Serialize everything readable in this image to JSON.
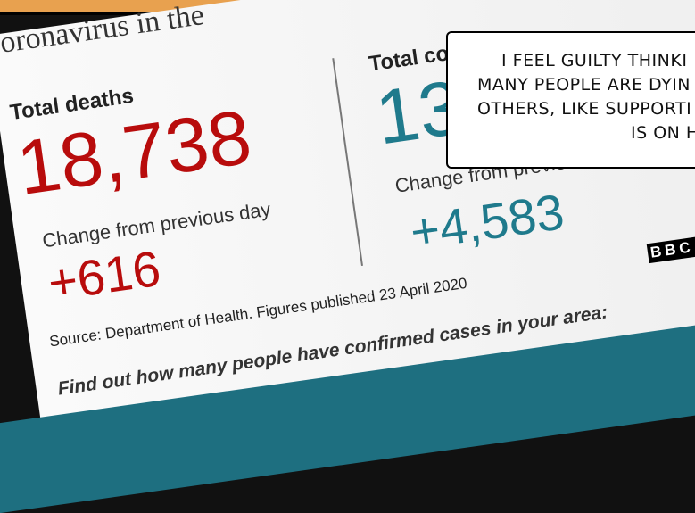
{
  "card": {
    "title": "oronavirus in the",
    "deaths": {
      "label": "Total deaths",
      "value": "18,738",
      "change_label": "Change from previous day",
      "change": "+616"
    },
    "cases": {
      "label": "Total co",
      "value": "13",
      "change_label": "Change from previous day",
      "change": "+4,583"
    },
    "logo": "BBC",
    "source": "Source: Department of Health. Figures published 23 April 2020",
    "link": "Find out how many people have confirmed cases in your area:"
  },
  "caption": {
    "lines": [
      "I FEEL GUILTY THINKI",
      "MANY PEOPLE ARE DYIN",
      "OTHERS, LIKE SUPPORTI",
      "IS ON H"
    ]
  }
}
